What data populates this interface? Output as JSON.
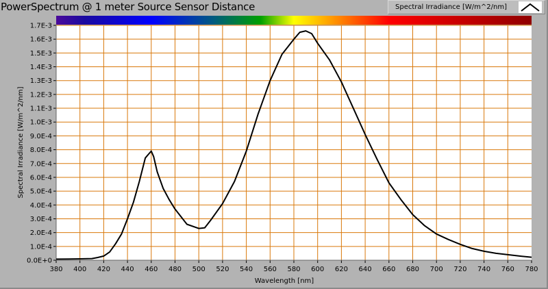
{
  "title": "PowerSpectrum @ 1 meter Source Sensor Distance",
  "legend": {
    "label": "Spectral Irradiance [W/m^2/nm]",
    "icon": "line-plot-icon"
  },
  "colors": {
    "grid": "#d9780a",
    "plot_bg": "#ffffff",
    "line": "#000000",
    "panel": "#b3b3b3"
  },
  "chart_data": {
    "type": "line",
    "title": "PowerSpectrum @ 1 meter Source Sensor Distance",
    "xlabel": "Wavelength [nm]",
    "ylabel": "Spectral Irradiance [W/m^2/nm]",
    "xlim": [
      380,
      780
    ],
    "ylim": [
      0,
      0.0017
    ],
    "grid": true,
    "legend_position": "top-right",
    "x_ticks": [
      "380",
      "400",
      "420",
      "440",
      "460",
      "480",
      "500",
      "520",
      "540",
      "560",
      "580",
      "600",
      "620",
      "640",
      "660",
      "680",
      "700",
      "720",
      "740",
      "760",
      "780"
    ],
    "y_ticks": [
      "0.0E+0",
      "1.0E-4",
      "2.0E-4",
      "3.0E-4",
      "4.0E-4",
      "5.0E-4",
      "6.0E-4",
      "7.0E-4",
      "8.0E-4",
      "9.0E-4",
      "1.0E-3",
      "1.1E-3",
      "1.2E-3",
      "1.3E-3",
      "1.4E-3",
      "1.5E-3",
      "1.6E-3",
      "1.7E-3"
    ],
    "series": [
      {
        "name": "Spectral Irradiance [W/m^2/nm]",
        "x": [
          380,
          390,
          400,
          410,
          415,
          420,
          425,
          430,
          435,
          440,
          445,
          450,
          455,
          458,
          460,
          462,
          465,
          470,
          475,
          480,
          490,
          500,
          505,
          510,
          520,
          530,
          540,
          550,
          560,
          570,
          580,
          585,
          590,
          595,
          600,
          610,
          620,
          630,
          640,
          650,
          660,
          670,
          680,
          690,
          700,
          710,
          720,
          730,
          740,
          750,
          760,
          770,
          780
        ],
        "y": [
          8e-06,
          9e-06,
          1e-05,
          1.2e-05,
          2e-05,
          3e-05,
          6e-05,
          0.00012,
          0.00019,
          0.0003,
          0.00042,
          0.00057,
          0.00074,
          0.00077,
          0.00079,
          0.00075,
          0.00064,
          0.00052,
          0.00044,
          0.00037,
          0.00026,
          0.00023,
          0.000235,
          0.00029,
          0.00041,
          0.00057,
          0.00079,
          0.00106,
          0.0013,
          0.00149,
          0.0016,
          0.00165,
          0.00166,
          0.00164,
          0.00157,
          0.00145,
          0.00129,
          0.0011,
          0.00091,
          0.00073,
          0.00056,
          0.00044,
          0.00033,
          0.00025,
          0.00019,
          0.00015,
          0.000115,
          8.5e-05,
          6.5e-05,
          5e-05,
          4e-05,
          3e-05,
          2.2e-05
        ]
      }
    ]
  }
}
